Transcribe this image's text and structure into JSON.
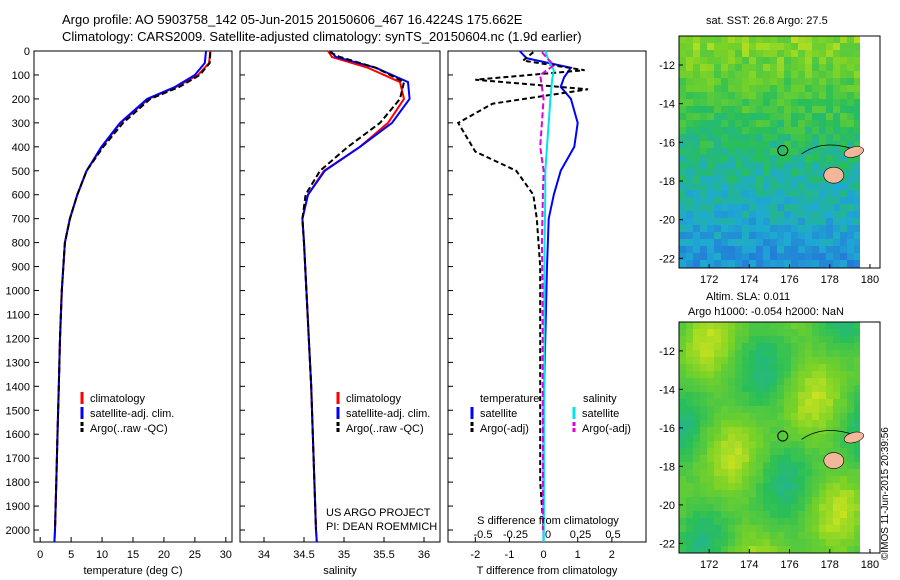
{
  "header": {
    "line1": "Argo profile: AO 5903758_142 05-Jun-2015 20150606_467 16.4224S 175.662E",
    "line2": "Climatology: CARS2009. Satellite-adjusted climatology: synTS_20150604.nc (1.9d earlier)"
  },
  "colors": {
    "climatology": "#ff0000",
    "satellite": "#0000ff",
    "argo": "#000000",
    "salinity_satellite": "#00e5e5",
    "salinity_argo": "#e000e0"
  },
  "chart_data": [
    {
      "type": "line",
      "name": "temperature",
      "xlabel": "temperature (deg C)",
      "ylabel": "",
      "xlim": [
        -1,
        31
      ],
      "ylim": [
        2050,
        0
      ],
      "xticks": [
        "0",
        "5",
        "10",
        "15",
        "20",
        "25",
        "30"
      ],
      "yticks": [
        "0",
        "100",
        "200",
        "300",
        "400",
        "500",
        "600",
        "700",
        "800",
        "900",
        "1000",
        "1100",
        "1200",
        "1300",
        "1400",
        "1500",
        "1600",
        "1700",
        "1800",
        "1900",
        "2000"
      ],
      "legend": [
        "climatology",
        "satellite-adj. clim.",
        "Argo(..raw -QC)"
      ],
      "series": [
        {
          "name": "climatology",
          "x": [
            27.5,
            27.3,
            25.5,
            22.0,
            17.5,
            13.0,
            10.0,
            7.5,
            6.0,
            4.8,
            4.0,
            3.5,
            3.2,
            3.0,
            2.8,
            2.6,
            2.4,
            2.3
          ],
          "y": [
            0,
            50,
            100,
            150,
            200,
            300,
            400,
            500,
            600,
            700,
            800,
            1000,
            1200,
            1400,
            1600,
            1800,
            2000,
            2050
          ]
        },
        {
          "name": "satellite-adj. clim.",
          "x": [
            26.8,
            26.6,
            25.0,
            21.8,
            17.3,
            12.9,
            9.9,
            7.5,
            6.0,
            4.8,
            4.0,
            3.5,
            3.2,
            3.0,
            2.8,
            2.6,
            2.4,
            2.3
          ],
          "y": [
            0,
            50,
            100,
            150,
            200,
            300,
            400,
            500,
            600,
            700,
            800,
            1000,
            1200,
            1400,
            1600,
            1800,
            2000,
            2050
          ]
        },
        {
          "name": "Argo(..raw -QC)",
          "x": [
            27.5,
            27.4,
            25.8,
            22.5,
            17.8,
            13.4,
            10.2,
            7.5,
            6.0,
            4.8,
            4.0,
            3.5,
            3.2,
            3.0,
            2.8,
            2.6,
            2.4
          ],
          "y": [
            5,
            50,
            100,
            150,
            200,
            300,
            400,
            500,
            600,
            700,
            800,
            1000,
            1200,
            1400,
            1600,
            1800,
            2000
          ]
        }
      ]
    },
    {
      "type": "line",
      "name": "salinity",
      "xlabel": "salinity",
      "xlim": [
        33.7,
        36.2
      ],
      "ylim": [
        2050,
        0
      ],
      "xticks": [
        "34",
        "34.5",
        "35",
        "35.5",
        "36"
      ],
      "legend": [
        "climatology",
        "satellite-adj. clim.",
        "Argo(..raw -QC)"
      ],
      "series": [
        {
          "name": "climatology",
          "x": [
            34.8,
            34.85,
            35.3,
            35.7,
            35.75,
            35.55,
            35.2,
            34.75,
            34.55,
            34.48,
            34.5,
            34.53,
            34.56,
            34.59,
            34.61,
            34.63,
            34.65,
            34.66
          ],
          "y": [
            0,
            25,
            70,
            130,
            200,
            300,
            400,
            500,
            600,
            700,
            800,
            1000,
            1200,
            1400,
            1600,
            1800,
            2000,
            2050
          ]
        },
        {
          "name": "satellite-adj. clim.",
          "x": [
            34.83,
            34.9,
            35.4,
            35.8,
            35.82,
            35.6,
            35.2,
            34.76,
            34.55,
            34.48,
            34.5,
            34.53,
            34.56,
            34.59,
            34.61,
            34.63,
            34.65,
            34.66
          ],
          "y": [
            0,
            25,
            70,
            130,
            200,
            300,
            400,
            500,
            600,
            700,
            800,
            1000,
            1200,
            1400,
            1600,
            1800,
            2000,
            2050
          ]
        },
        {
          "name": "Argo(..raw -QC)",
          "x": [
            34.82,
            34.95,
            35.4,
            35.75,
            35.7,
            35.45,
            35.05,
            34.7,
            34.52,
            34.48,
            34.5,
            34.53,
            34.56,
            34.59,
            34.61,
            34.63,
            34.65
          ],
          "y": [
            5,
            25,
            70,
            130,
            200,
            300,
            400,
            500,
            600,
            700,
            800,
            1000,
            1200,
            1400,
            1600,
            1800,
            2000
          ]
        }
      ],
      "annotation": [
        "US ARGO PROJECT",
        "PI: DEAN ROEMMICH"
      ]
    },
    {
      "type": "line",
      "name": "differences",
      "xlabel": "T difference from climatology",
      "xlabel_top": "S difference from climatology",
      "xlim": [
        -2.8,
        3.0
      ],
      "ylim": [
        2050,
        0
      ],
      "xticks": [
        "-2",
        "-1",
        "0",
        "1",
        "2"
      ],
      "xticks_top": [
        "-0.5",
        "-0.25",
        "0",
        "0.25",
        "0.5"
      ],
      "legend_headers": [
        "temperature",
        "salinity"
      ],
      "legend": [
        "satellite",
        "Argo(-adj)",
        "satellite",
        "Argo(-adj)"
      ],
      "series": [
        {
          "name": "temperature satellite",
          "x": [
            -0.7,
            -0.5,
            0.8,
            0.6,
            0.5,
            0.8,
            1.0,
            0.9,
            0.5,
            0.3,
            0.15,
            0.1,
            0.05,
            0.0,
            0.0,
            0.0
          ],
          "y": [
            0,
            30,
            70,
            110,
            150,
            200,
            300,
            400,
            500,
            600,
            700,
            900,
            1200,
            1500,
            1800,
            2050
          ]
        },
        {
          "name": "temperature Argo(-adj)",
          "x": [
            -0.3,
            -0.6,
            1.2,
            -2.0,
            1.3,
            -1.5,
            -2.5,
            -2.0,
            -0.8,
            -0.3,
            -0.2,
            -0.1,
            -0.1,
            -0.1,
            -0.1,
            0.0
          ],
          "y": [
            5,
            40,
            80,
            120,
            160,
            220,
            300,
            420,
            500,
            600,
            700,
            900,
            1200,
            1500,
            1800,
            2000
          ]
        },
        {
          "name": "salinity satellite",
          "x": [
            0.05,
            0.15,
            0.3,
            0.25,
            0.2,
            0.15,
            0.1,
            0.05,
            0.05,
            0.03,
            0.02,
            0.02,
            0.01,
            0.01,
            0.0
          ],
          "y": [
            0,
            40,
            80,
            120,
            200,
            300,
            400,
            500,
            600,
            800,
            1000,
            1300,
            1600,
            1900,
            2050
          ]
        },
        {
          "name": "salinity Argo(-adj)",
          "x": [
            -0.05,
            0.3,
            -0.1,
            0.0,
            -0.05,
            -0.1,
            0.0,
            -0.02,
            -0.05,
            -0.03,
            -0.03,
            -0.02,
            -0.02,
            -0.02
          ],
          "y": [
            5,
            60,
            100,
            200,
            300,
            400,
            500,
            600,
            800,
            1000,
            1300,
            1600,
            1900,
            2000
          ]
        }
      ]
    },
    {
      "type": "heatmap",
      "name": "sst-map",
      "title": "sat. SST: 26.8  Argo: 27.5",
      "xticks": [
        "172",
        "174",
        "176",
        "178",
        "180"
      ],
      "yticks": [
        "-12",
        "-14",
        "-16",
        "-18",
        "-20",
        "-22"
      ],
      "xlim": [
        170.5,
        180.5
      ],
      "ylim": [
        -22.5,
        -10.5
      ],
      "argo_position": {
        "lon": 175.662,
        "lat": -16.4224
      }
    },
    {
      "type": "heatmap",
      "name": "sla-map",
      "title": "Altim. SLA: 0.011",
      "subtitle": "Argo h1000: -0.054  h2000: NaN",
      "xticks": [
        "172",
        "174",
        "176",
        "178",
        "180"
      ],
      "yticks": [
        "-12",
        "-14",
        "-16",
        "-18",
        "-20",
        "-22"
      ],
      "xlim": [
        170.5,
        180.5
      ],
      "ylim": [
        -22.5,
        -10.5
      ],
      "argo_position": {
        "lon": 175.662,
        "lat": -16.4224
      }
    }
  ],
  "footer": {
    "stamp": "©IMOS 11-Jun-2015 20:39:56"
  }
}
